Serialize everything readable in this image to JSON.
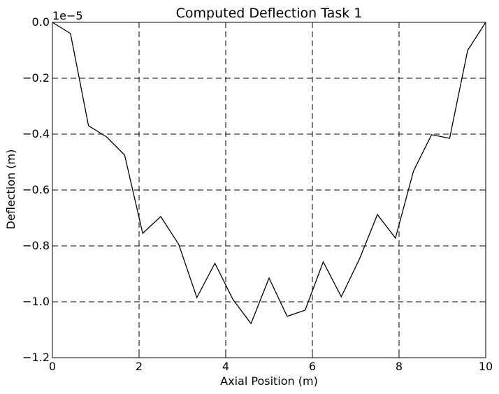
{
  "chart_data": {
    "type": "line",
    "title": "Computed Deflection Task 1",
    "xlabel": "Axial Position (m)",
    "ylabel": "Deflection (m)",
    "y_offset_text": "1e−5",
    "xlim": [
      0,
      10
    ],
    "ylim": [
      -1.2,
      0
    ],
    "grid": true,
    "x_ticks": [
      0,
      2,
      4,
      6,
      8,
      10
    ],
    "x_tick_labels": [
      "0",
      "2",
      "4",
      "6",
      "8",
      "10"
    ],
    "y_ticks": [
      0,
      -0.2,
      -0.4,
      -0.6,
      -0.8,
      -1.0,
      -1.2
    ],
    "y_tick_labels": [
      "0.0",
      "−0.2",
      "−0.4",
      "−0.6",
      "−0.8",
      "−1.0",
      "−1.2"
    ],
    "series": [
      {
        "color": "#000000",
        "x": [
          0,
          0.417,
          0.833,
          1.25,
          1.667,
          2.083,
          2.5,
          2.917,
          3.333,
          3.75,
          4.167,
          4.583,
          5.0,
          5.417,
          5.833,
          6.25,
          6.667,
          7.083,
          7.5,
          7.917,
          8.333,
          8.75,
          9.167,
          9.583,
          10.0
        ],
        "y": [
          0,
          -0.04,
          -0.37,
          -0.41,
          -0.475,
          -0.755,
          -0.695,
          -0.795,
          -0.985,
          -0.862,
          -0.992,
          -1.078,
          -0.915,
          -1.052,
          -1.03,
          -0.857,
          -0.982,
          -0.848,
          -0.688,
          -0.772,
          -0.532,
          -0.402,
          -0.415,
          -0.1,
          0
        ]
      }
    ]
  }
}
